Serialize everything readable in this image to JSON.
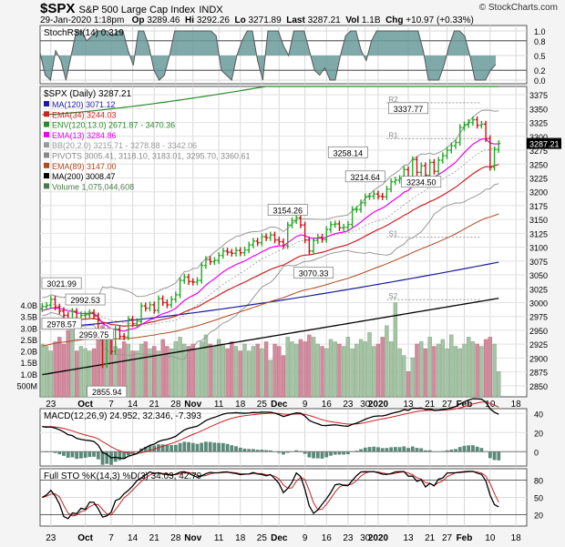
{
  "header": {
    "symbol": "$SPX",
    "name": "S&P 500 Large Cap Index",
    "exchange": "INDX",
    "date": "29-Jan-2020 1:18pm",
    "open_label": "Op",
    "open": "3289.46",
    "high_label": "Hi",
    "high": "3292.26",
    "low_label": "Lo",
    "low": "3271.89",
    "last_label": "Last",
    "last": "3287.21",
    "vol_label": "Vol",
    "vol": "1.1B",
    "chg_label": "Chg",
    "chg": "+10.97 (+0.33%)",
    "credit": "© StockCharts.com"
  },
  "chart_data": [
    {
      "type": "line",
      "panel": "stochrsi",
      "legend": "StochRSI(14) 0.319",
      "ylim": [
        0,
        1
      ],
      "yticks": [
        "1.0",
        "0.8",
        "0.5",
        "0.2",
        "0.0"
      ],
      "levels": [
        0.8,
        0.2
      ],
      "values": [
        0.55,
        0.1,
        0.0,
        0.6,
        0.4,
        0.0,
        0.5,
        1.0,
        1.0,
        0.8,
        0.9,
        1.0,
        1.0,
        1.0,
        0.9,
        1.0,
        1.0,
        0.6,
        0.3,
        1.0,
        1.0,
        0.7,
        0.2,
        0.0,
        0.1,
        0.5,
        1.0,
        1.0,
        1.0,
        1.0,
        1.0,
        1.0,
        1.0,
        1.0,
        0.9,
        0.2,
        0.1,
        0.0,
        0.5,
        0.8,
        1.0,
        1.0,
        0.4,
        0.0,
        1.0,
        1.0,
        1.0,
        0.7,
        0.5,
        1.0,
        1.0,
        1.0,
        0.6,
        0.2,
        0.1,
        0.25,
        0.0,
        0.0,
        0.5,
        0.9,
        1.0,
        1.0,
        0.6,
        0.4,
        0.8,
        1.0,
        1.0,
        1.0,
        1.0,
        1.0,
        1.0,
        1.0,
        1.0,
        1.0,
        0.6,
        0.0,
        0.0,
        0.0,
        0.3,
        0.7,
        1.0,
        1.0,
        0.9,
        0.5,
        0.0,
        0.0,
        0.0,
        0.2,
        0.319
      ]
    },
    {
      "type": "candlestick",
      "panel": "price",
      "title": "$SPX (Daily) 3287.21",
      "ylim": [
        2830,
        3390
      ],
      "yticks": [
        3375,
        3350,
        3325,
        3300,
        3275,
        3250,
        3225,
        3200,
        3175,
        3150,
        3125,
        3100,
        3075,
        3050,
        3025,
        3000,
        2975,
        2950,
        2925,
        2900,
        2875,
        2850
      ],
      "legend": [
        {
          "label": "MA(120) 3071.12",
          "color": "#1a1aa0"
        },
        {
          "label": "EMA(34) 3244.03",
          "color": "#cc2222"
        },
        {
          "label": "ENV(120,13.0) 2671.87 - 3470.36",
          "color": "#2a8a2a"
        },
        {
          "label": "EMA(13) 3284.86",
          "color": "#ee00ee"
        },
        {
          "label": "BB(20,2.0) 3215.71 - 3278.88 - 3342.06",
          "color": "#999999"
        },
        {
          "label": "PIVOTS 3005.41, 3118.10, 3183.01, 3295.70, 3360.61",
          "color": "#888888"
        },
        {
          "label": "EMA(89) 3147.00",
          "color": "#b04a20"
        },
        {
          "label": "MA(200) 3008.47",
          "color": "#000000"
        },
        {
          "label": "Volume 1,075,044,608",
          "color": "#4a7a4a"
        }
      ],
      "pivots": [
        {
          "label": "R2",
          "value": 3360.61
        },
        {
          "label": "R1",
          "value": 3295.7
        },
        {
          "label": "S1",
          "value": 3118.1
        },
        {
          "label": "S2",
          "value": 3005.41
        }
      ],
      "annotations": [
        {
          "text": "3021.99",
          "value": 3021.99,
          "idx": 3
        },
        {
          "text": "2992.53",
          "value": 2992.53,
          "idx": 10
        },
        {
          "text": "2978.57",
          "value": 2978.57,
          "idx": 0
        },
        {
          "text": "2959.75",
          "value": 2959.75,
          "idx": 12
        },
        {
          "text": "2855.94",
          "value": 2855.94,
          "idx": 15
        },
        {
          "text": "3154.26",
          "value": 3154.26,
          "idx": 57
        },
        {
          "text": "3070.33",
          "value": 3070.33,
          "idx": 63
        },
        {
          "text": "3258.14",
          "value": 3258.14,
          "idx": 71
        },
        {
          "text": "3214.64",
          "value": 3214.64,
          "idx": 75
        },
        {
          "text": "3337.77",
          "value": 3337.77,
          "idx": 85
        },
        {
          "text": "3234.50",
          "value": 3234.5,
          "idx": 88
        }
      ],
      "close": [
        2993,
        2995,
        3006,
        2992,
        2985,
        2977,
        2966,
        2984,
        2961,
        2977,
        2978,
        2982,
        2976,
        2940,
        2888,
        2938,
        2912,
        2952,
        2939,
        2938,
        2970,
        2962,
        2966,
        2994,
        2990,
        2996,
        2986,
        3007,
        3000,
        2996,
        3006,
        3014,
        3040,
        3046,
        3038,
        3037,
        3040,
        3067,
        3078,
        3074,
        3076,
        3085,
        3093,
        3091,
        3089,
        3094,
        3090,
        3095,
        3104,
        3111,
        3108,
        3119,
        3117,
        3122,
        3113,
        3110,
        3103,
        3140,
        3148,
        3153,
        3140,
        3113,
        3093,
        3112,
        3118,
        3114,
        3132,
        3141,
        3142,
        3135,
        3136,
        3141,
        3168,
        3168,
        3180,
        3191,
        3192,
        3196,
        3192,
        3191,
        3205,
        3218,
        3221,
        3224,
        3240,
        3221,
        3258,
        3235,
        3247,
        3230,
        3253,
        3237,
        3257,
        3265,
        3275,
        3283,
        3289,
        3316,
        3321,
        3325,
        3330,
        3320,
        3322,
        3296,
        3244,
        3276,
        3287
      ],
      "volume_b": [
        2.3,
        2.2,
        2.0,
        2.4,
        2.6,
        2.3,
        2.9,
        3.4,
        2.0,
        2.2,
        2.1,
        2.0,
        2.1,
        2.5,
        3.1,
        2.7,
        2.9,
        2.2,
        2.1,
        2.4,
        2.3,
        2.0,
        2.0,
        2.3,
        2.4,
        2.1,
        2.2,
        2.0,
        2.5,
        2.2,
        2.1,
        2.4,
        2.6,
        2.3,
        2.2,
        2.3,
        2.1,
        2.4,
        2.7,
        2.3,
        2.2,
        2.5,
        2.3,
        2.1,
        2.4,
        2.2,
        2.0,
        2.3,
        2.0,
        2.2,
        2.3,
        2.1,
        2.4,
        1.6,
        2.3,
        2.2,
        1.8,
        2.6,
        2.4,
        2.3,
        2.5,
        2.4,
        2.7,
        2.6,
        2.3,
        2.2,
        2.1,
        2.5,
        2.4,
        2.3,
        2.2,
        2.6,
        2.1,
        2.3,
        2.5,
        2.4,
        2.8,
        2.2,
        2.3,
        2.6,
        3.1,
        2.4,
        4.1,
        2.1,
        1.8,
        1.1,
        1.7,
        2.3,
        2.4,
        2.1,
        2.6,
        2.2,
        2.3,
        2.5,
        2.1,
        2.7,
        2.2,
        2.1,
        2.3,
        2.6,
        2.4,
        2.3,
        2.2,
        2.5,
        2.6,
        2.3,
        1.1
      ]
    },
    {
      "type": "line",
      "panel": "macd",
      "legend": "MACD(12,26,9) 24.952, 32.346, -7.393",
      "ylim": [
        -15,
        45
      ],
      "yticks": [
        "40",
        "20",
        "0"
      ]
    },
    {
      "type": "line",
      "panel": "fullsto",
      "legend": "Full STO %K(14,3) %D(3) 34.03, 42.79",
      "ylim": [
        0,
        100
      ],
      "yticks": [
        "80",
        "50",
        "20"
      ]
    }
  ],
  "price_labels": {
    "last": "3287.21",
    "volume_axis": [
      "4.0B",
      "3.5B",
      "3.0B",
      "2.5B",
      "2.0B",
      "1.5B",
      "1.0B",
      "500M"
    ]
  },
  "x_axis": {
    "labels": [
      {
        "text": "23",
        "idx": 2
      },
      {
        "text": "Oct",
        "idx": 10,
        "bold": true
      },
      {
        "text": "7",
        "idx": 16
      },
      {
        "text": "14",
        "idx": 21
      },
      {
        "text": "21",
        "idx": 26
      },
      {
        "text": "28",
        "idx": 31
      },
      {
        "text": "Nov",
        "idx": 35,
        "bold": true
      },
      {
        "text": "11",
        "idx": 41
      },
      {
        "text": "18",
        "idx": 46
      },
      {
        "text": "25",
        "idx": 51
      },
      {
        "text": "Dec",
        "idx": 55,
        "bold": true
      },
      {
        "text": "9",
        "idx": 61
      },
      {
        "text": "16",
        "idx": 66
      },
      {
        "text": "23",
        "idx": 71
      },
      {
        "text": "30",
        "idx": 75
      },
      {
        "text": "2020",
        "idx": 78,
        "bold": true
      },
      {
        "text": "13",
        "idx": 85
      },
      {
        "text": "21",
        "idx": 90
      },
      {
        "text": "27",
        "idx": 94
      },
      {
        "text": "Feb",
        "idx": 98,
        "bold": true
      },
      {
        "text": "10",
        "idx": 104
      },
      {
        "text": "18",
        "idx": 110
      }
    ],
    "slots": 113
  },
  "colors": {
    "up": "#22aa22",
    "down": "#cc1111",
    "stoch_fill": "#6a9a9a",
    "vol_up": "#a4c4a4",
    "vol_down": "#d48a9c"
  }
}
